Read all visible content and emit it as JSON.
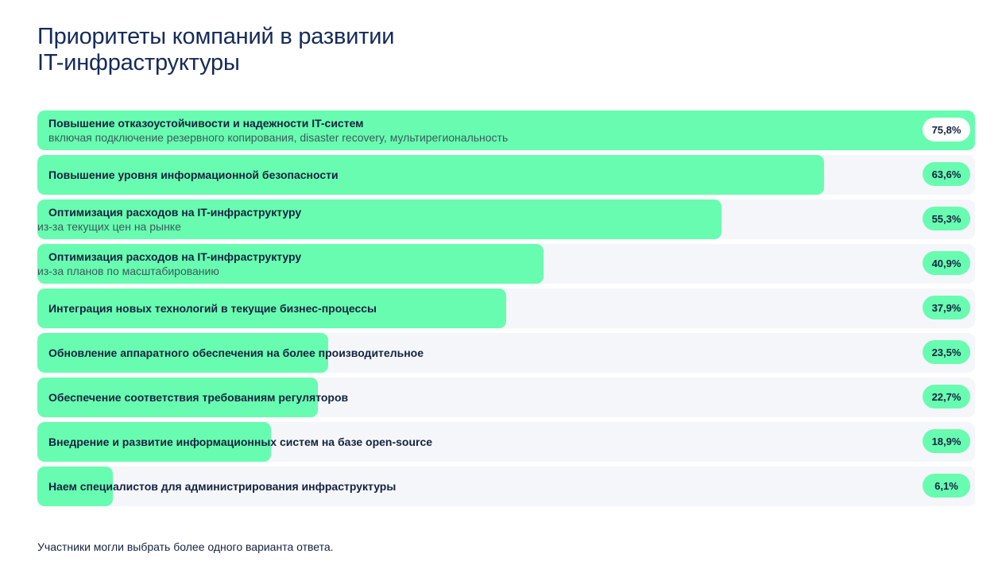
{
  "title_line1": "Приоритеты компаний в развитии",
  "title_line2": "IT-инфраструктуры",
  "footnote": "Участники могли выбрать более одного варианта ответа.",
  "colors": {
    "bar": "#68fcb1",
    "track": "#f4f6f9",
    "text": "#14223f"
  },
  "chart_data": {
    "type": "bar",
    "orientation": "horizontal",
    "title": "Приоритеты компаний в развитии IT-инфраструктуры",
    "xlim": [
      0,
      75.8
    ],
    "categories": [
      "Повышение отказоустойчивости и надежности IT-систем",
      "Повышение уровня информационной безопасности",
      "Оптимизация расходов на IT-инфраструктуру",
      "Оптимизация расходов на IT-инфраструктуру",
      "Интеграция новых технологий в текущие бизнес-процессы",
      "Обновление  аппаратного обеспечения на более производительное",
      "Обеспечение соответствия требованиям регуляторов",
      "Внедрение и развитие информационных систем на базе open-source",
      "Наем специалистов для администрирования инфраструктуры"
    ],
    "sublabels": [
      "включая подключение резервного копирования, disaster recovery, мультирегиональность",
      "",
      "из-за текущих цен на рынке",
      "из-за планов по масштабированию",
      "",
      "",
      "",
      "",
      ""
    ],
    "values": [
      75.8,
      63.6,
      55.3,
      40.9,
      37.9,
      23.5,
      22.7,
      18.9,
      6.1
    ],
    "value_labels": [
      "75,8%",
      "63,6%",
      "55,3%",
      "40,9%",
      "37,9%",
      "23,5%",
      "22,7%",
      "18,9%",
      "6,1%"
    ]
  }
}
